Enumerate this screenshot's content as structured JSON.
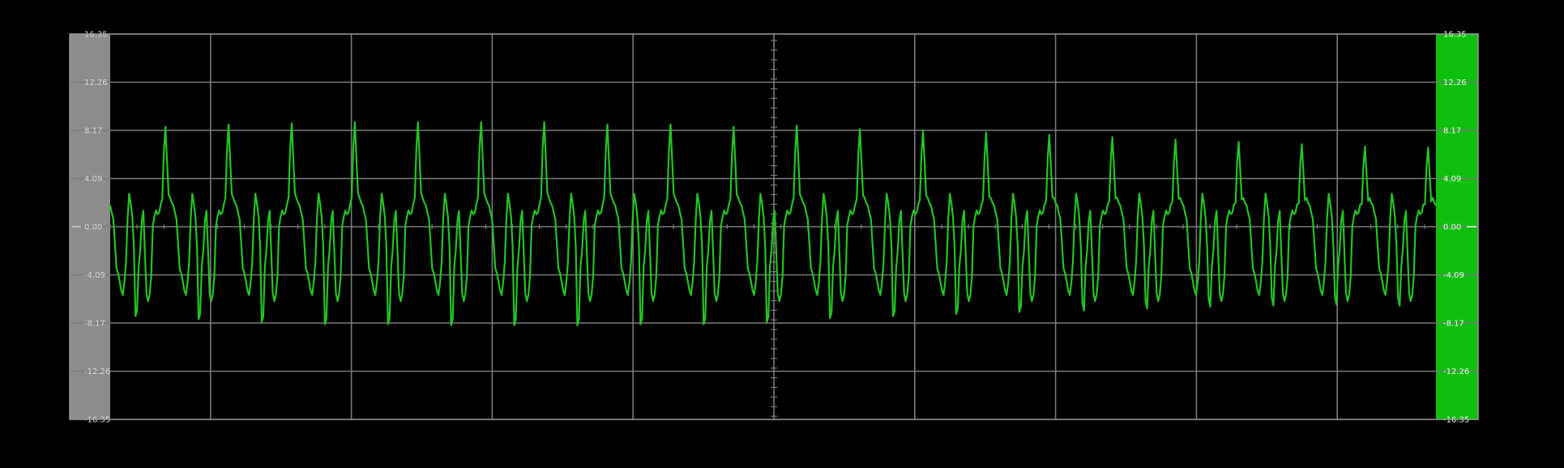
{
  "chart_data": {
    "type": "line",
    "title": "",
    "xlabel": "",
    "ylabel": "",
    "ylim": [
      -16.35,
      16.35
    ],
    "y_ticks": [
      "16.35",
      "12.26",
      "8.17",
      "4.09",
      "0.00",
      "-4.09",
      "-8.17",
      "-12.26",
      "-16.35"
    ],
    "y_ticks_right": [
      "16.35",
      "12.26",
      "8.17",
      "4.09",
      "0.00",
      "-4.09",
      "-8.17",
      "-12.26",
      "-16.35"
    ],
    "grid": true,
    "x_divisions": 10,
    "cycles": 21,
    "samples_per_cycle": 40,
    "series": [
      {
        "color": "#22c422",
        "peak_values": [
          8.6,
          8.8,
          8.9,
          9.0,
          9.0,
          9.0,
          9.0,
          8.8,
          8.8,
          8.6,
          8.7,
          8.4,
          8.3,
          8.1,
          7.9,
          7.7,
          7.5,
          7.3,
          7.1,
          6.9,
          6.8
        ],
        "trough_values": [
          -8.7,
          -9.0,
          -9.3,
          -9.5,
          -9.5,
          -9.6,
          -9.6,
          -9.6,
          -9.5,
          -9.5,
          -9.3,
          -8.9,
          -8.7,
          -8.5,
          -8.3,
          -8.1,
          -7.9,
          -7.7,
          -7.6,
          -7.5,
          -7.6
        ],
        "trough_shape": [
          "sharp",
          "sharp",
          "sharp",
          "sharp",
          "sharp",
          "sharp",
          "sharp",
          "sharp",
          "sharp",
          "sharp",
          "sharp",
          "sharp",
          "sharp",
          "sharp",
          "sharp",
          "broad",
          "broad",
          "broad",
          "broad",
          "broad",
          "broad"
        ],
        "cycle_shape": {
          "phase": [
            0.0,
            0.04,
            0.11,
            0.2,
            0.24,
            0.27,
            0.3,
            0.34,
            0.37,
            0.41,
            0.45,
            0.52,
            0.58,
            0.61,
            0.64,
            0.68,
            0.72,
            0.76,
            0.82,
            0.87,
            0.93,
            1.0
          ],
          "value": [
            1.8,
            0.9,
            -3.8,
            -5.8,
            -4.2,
            0.5,
            2.8,
            1.6,
            -1.4,
            -7.9,
            -3.4,
            1.5,
            -5.8,
            -6.5,
            -5.0,
            0.3,
            1.4,
            1.0,
            2.2,
            8.6,
            2.6,
            1.8
          ]
        }
      }
    ]
  },
  "colors": {
    "background": "#000000",
    "grid": "#7a7a7a",
    "left_panel": "#8c8c8c",
    "right_panel": "#0fbf0f",
    "trace": "#22c422"
  }
}
